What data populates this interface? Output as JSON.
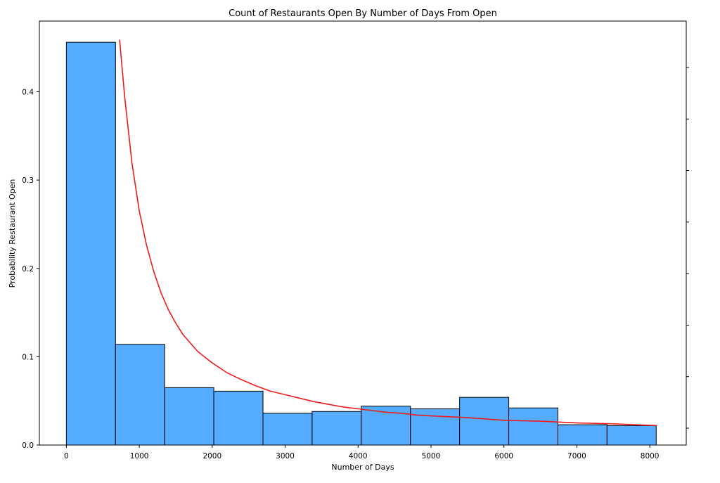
{
  "chart_data": {
    "type": "bar",
    "title": "Count of Restaurants Open By Number of Days From Open",
    "xlabel": "Number of Days",
    "ylabel": "Probability Restaurant Open",
    "xlim": [
      -370,
      8500
    ],
    "ylim": [
      0,
      0.48
    ],
    "x_ticks": [
      0,
      1000,
      2000,
      3000,
      4000,
      5000,
      6000,
      7000,
      8000
    ],
    "x_tick_labels": [
      "0",
      "1000",
      "2000",
      "3000",
      "4000",
      "5000",
      "6000",
      "7000",
      "8000"
    ],
    "y_ticks": [
      0,
      0.1,
      0.2,
      0.3,
      0.4
    ],
    "y_tick_labels": [
      "0.0",
      "0.1",
      "0.2",
      "0.3",
      "0.4"
    ],
    "right_axis_ticks": 8,
    "grid": false,
    "bar_color": "#54abff",
    "bar_edge_color": "#000000",
    "bins": [
      {
        "x0": 0,
        "x1": 674,
        "value": 0.456
      },
      {
        "x0": 674,
        "x1": 1348,
        "value": 0.114
      },
      {
        "x0": 1348,
        "x1": 2022,
        "value": 0.065
      },
      {
        "x0": 2022,
        "x1": 2696,
        "value": 0.061
      },
      {
        "x0": 2696,
        "x1": 3370,
        "value": 0.036
      },
      {
        "x0": 3370,
        "x1": 4044,
        "value": 0.038
      },
      {
        "x0": 4044,
        "x1": 4718,
        "value": 0.044
      },
      {
        "x0": 4718,
        "x1": 5392,
        "value": 0.041
      },
      {
        "x0": 5392,
        "x1": 6066,
        "value": 0.054
      },
      {
        "x0": 6066,
        "x1": 6740,
        "value": 0.042
      },
      {
        "x0": 6740,
        "x1": 7414,
        "value": 0.023
      },
      {
        "x0": 7414,
        "x1": 8088,
        "value": 0.022
      }
    ],
    "curve": {
      "color": "#ee1c1c",
      "x": [
        730,
        800,
        900,
        1000,
        1100,
        1200,
        1300,
        1400,
        1500,
        1600,
        1800,
        2000,
        2200,
        2400,
        2600,
        2800,
        3000,
        3200,
        3400,
        3600,
        3800,
        4000,
        4200,
        4400,
        4600,
        4800,
        5000,
        5500,
        6000,
        6500,
        7000,
        7500,
        8100
      ],
      "y": [
        0.459,
        0.394,
        0.319,
        0.265,
        0.226,
        0.196,
        0.172,
        0.153,
        0.138,
        0.125,
        0.106,
        0.093,
        0.082,
        0.074,
        0.067,
        0.061,
        0.057,
        0.053,
        0.049,
        0.046,
        0.043,
        0.041,
        0.039,
        0.037,
        0.036,
        0.034,
        0.033,
        0.031,
        0.028,
        0.027,
        0.025,
        0.024,
        0.022
      ]
    }
  }
}
